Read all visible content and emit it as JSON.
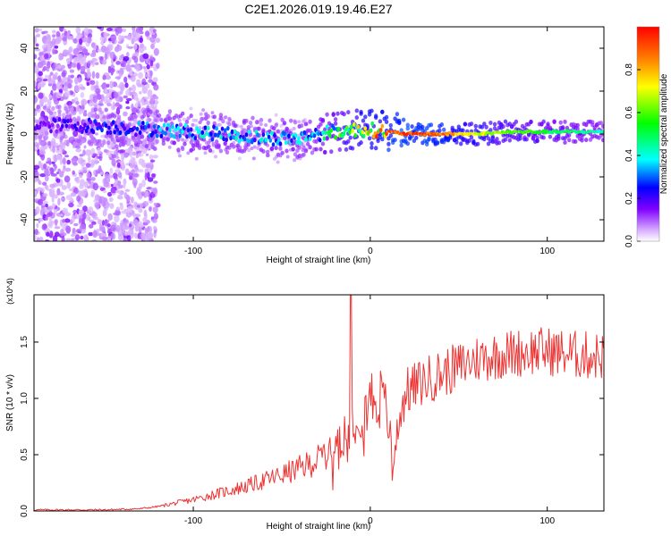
{
  "title": "C2E1.2026.019.19.46.E27",
  "chart_data": [
    {
      "type": "heatmap",
      "panel": "top",
      "xlabel": "Height of straight line (km)",
      "ylabel": "Frequency (Hz)",
      "xlim": [
        -190,
        132
      ],
      "ylim": [
        -50,
        50
      ],
      "xticks": [
        -100,
        0,
        100
      ],
      "yticks": [
        -40,
        -20,
        0,
        20,
        40
      ],
      "colorbar": {
        "label": "Normalized spectral amplitude",
        "range": [
          0,
          1
        ],
        "ticks": [
          "0.0",
          "0.2",
          "0.4",
          "0.6",
          "0.8"
        ],
        "tick_values": [
          0.0,
          0.2,
          0.4,
          0.6,
          0.8
        ],
        "colors": [
          "#ffffff",
          "#c080ff",
          "#8000ff",
          "#0000ff",
          "#00ffff",
          "#00ff00",
          "#ffff00",
          "#ff8000",
          "#ff0000"
        ]
      },
      "ridge": {
        "x": [
          -185,
          -160,
          -140,
          -120,
          -100,
          -80,
          -60,
          -40,
          -30,
          -20,
          -10,
          0,
          10,
          20,
          40,
          60,
          80,
          100,
          120,
          132
        ],
        "freq": [
          4,
          4,
          3,
          2,
          1,
          0,
          -2,
          -2,
          0,
          1,
          2,
          2,
          1,
          0,
          0,
          0,
          1,
          1,
          1,
          1
        ],
        "amplitude": [
          0.2,
          0.25,
          0.3,
          0.35,
          0.4,
          0.4,
          0.4,
          0.4,
          0.45,
          0.55,
          0.75,
          0.85,
          0.95,
          1.0,
          0.95,
          0.75,
          0.65,
          0.55,
          0.5,
          0.45
        ]
      }
    },
    {
      "type": "line",
      "panel": "bottom",
      "xlabel": "Height of straight line (km)",
      "ylabel": "SNR (10 * v/v)",
      "y_multiplier": "(x10^4)",
      "xlim": [
        -190,
        132
      ],
      "ylim": [
        0,
        1.92
      ],
      "xticks": [
        -100,
        0,
        100
      ],
      "yticks": [
        "0.0",
        "0.5",
        "1.0",
        "1.5"
      ],
      "ytick_values": [
        0,
        0.5,
        1.0,
        1.5
      ],
      "line_color": "#ee3333",
      "series": [
        {
          "name": "SNR",
          "x": [
            -190,
            -150,
            -130,
            -120,
            -110,
            -100,
            -90,
            -80,
            -70,
            -60,
            -50,
            -40,
            -30,
            -25,
            -20,
            -15,
            -12,
            -10,
            -8,
            -5,
            0,
            5,
            10,
            13,
            15,
            20,
            30,
            40,
            50,
            60,
            70,
            80,
            90,
            100,
            110,
            120,
            132
          ],
          "y": [
            0.01,
            0.01,
            0.02,
            0.04,
            0.07,
            0.1,
            0.14,
            0.18,
            0.22,
            0.27,
            0.32,
            0.38,
            0.45,
            0.52,
            0.6,
            0.7,
            0.78,
            0.8,
            0.85,
            0.9,
            1.0,
            1.02,
            0.85,
            0.35,
            0.75,
            1.05,
            1.15,
            1.22,
            1.28,
            1.35,
            1.38,
            1.4,
            1.42,
            1.42,
            1.4,
            1.38,
            1.38
          ],
          "spike": {
            "x": -11,
            "y": 1.92
          }
        }
      ]
    }
  ]
}
